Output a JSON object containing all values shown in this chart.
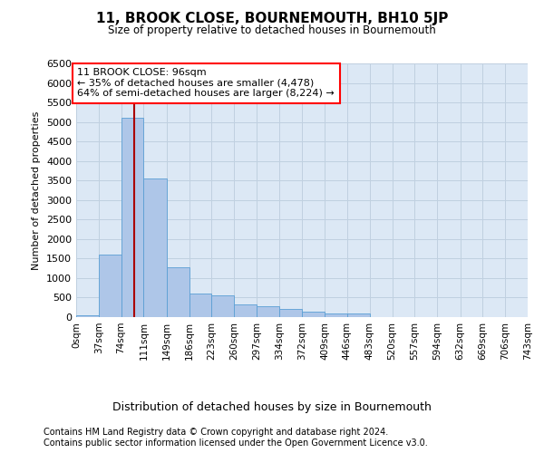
{
  "title": "11, BROOK CLOSE, BOURNEMOUTH, BH10 5JP",
  "subtitle": "Size of property relative to detached houses in Bournemouth",
  "xlabel": "Distribution of detached houses by size in Bournemouth",
  "ylabel": "Number of detached properties",
  "footer_line1": "Contains HM Land Registry data © Crown copyright and database right 2024.",
  "footer_line2": "Contains public sector information licensed under the Open Government Licence v3.0.",
  "annotation_title": "11 BROOK CLOSE: 96sqm",
  "annotation_line1": "← 35% of detached houses are smaller (4,478)",
  "annotation_line2": "64% of semi-detached houses are larger (8,224) →",
  "property_size": 96,
  "bin_edges": [
    0,
    37,
    74,
    111,
    149,
    186,
    223,
    260,
    297,
    334,
    372,
    409,
    446,
    483,
    520,
    557,
    594,
    632,
    669,
    706,
    743
  ],
  "bar_heights": [
    55,
    1600,
    5100,
    3550,
    1280,
    600,
    550,
    320,
    290,
    200,
    130,
    100,
    90,
    0,
    0,
    0,
    0,
    0,
    0,
    0
  ],
  "bar_color": "#aec6e8",
  "bar_edge_color": "#5a9fd4",
  "line_color": "#aa0000",
  "grid_color": "#c0d0e0",
  "background_color": "#dce8f5",
  "ylim": [
    0,
    6500
  ],
  "yticks": [
    0,
    500,
    1000,
    1500,
    2000,
    2500,
    3000,
    3500,
    4000,
    4500,
    5000,
    5500,
    6000,
    6500
  ]
}
